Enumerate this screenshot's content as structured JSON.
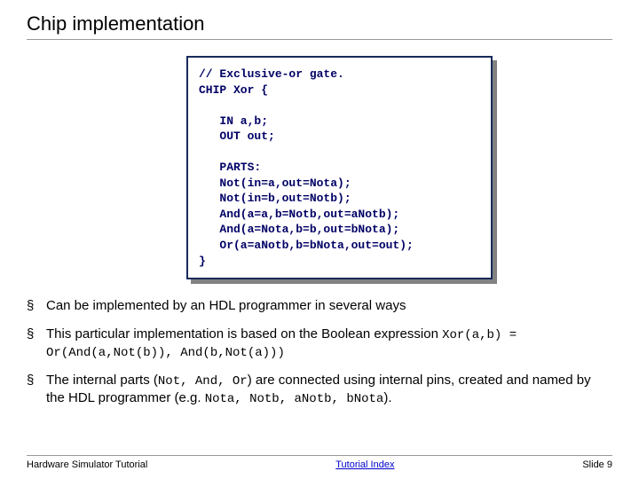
{
  "title": "Chip implementation",
  "code": "// Exclusive-or gate.\nCHIP Xor {\n\n   IN a,b;\n   OUT out;\n\n   PARTS:\n   Not(in=a,out=Nota);\n   Not(in=b,out=Notb);\n   And(a=a,b=Notb,out=aNotb);\n   And(a=Nota,b=b,out=bNota);\n   Or(a=aNotb,b=bNota,out=out);\n}",
  "bullets": {
    "b1": "Can be implemented by an HDL programmer in several ways",
    "b2_pre": "This particular implementation is based on the Boolean expression ",
    "b2_expr": "Xor(a,b) = Or(And(a,Not(b)), And(b,Not(a)))",
    "b3_pre": "The internal parts (",
    "b3_mid1": "Not, And, Or",
    "b3_mid2": ") are connected using internal pins, created and named by the HDL programmer  (e.g. ",
    "b3_mono": "Nota, Notb, aNotb, bNota",
    "b3_post": ")."
  },
  "footer": {
    "left": "Hardware Simulator Tutorial",
    "center": "Tutorial Index",
    "right": "Slide 9"
  },
  "colors": {
    "code_text": "#000066",
    "code_border": "#182a5a",
    "shadow": "#828282",
    "link": "#0000cc",
    "rule": "#999999"
  }
}
